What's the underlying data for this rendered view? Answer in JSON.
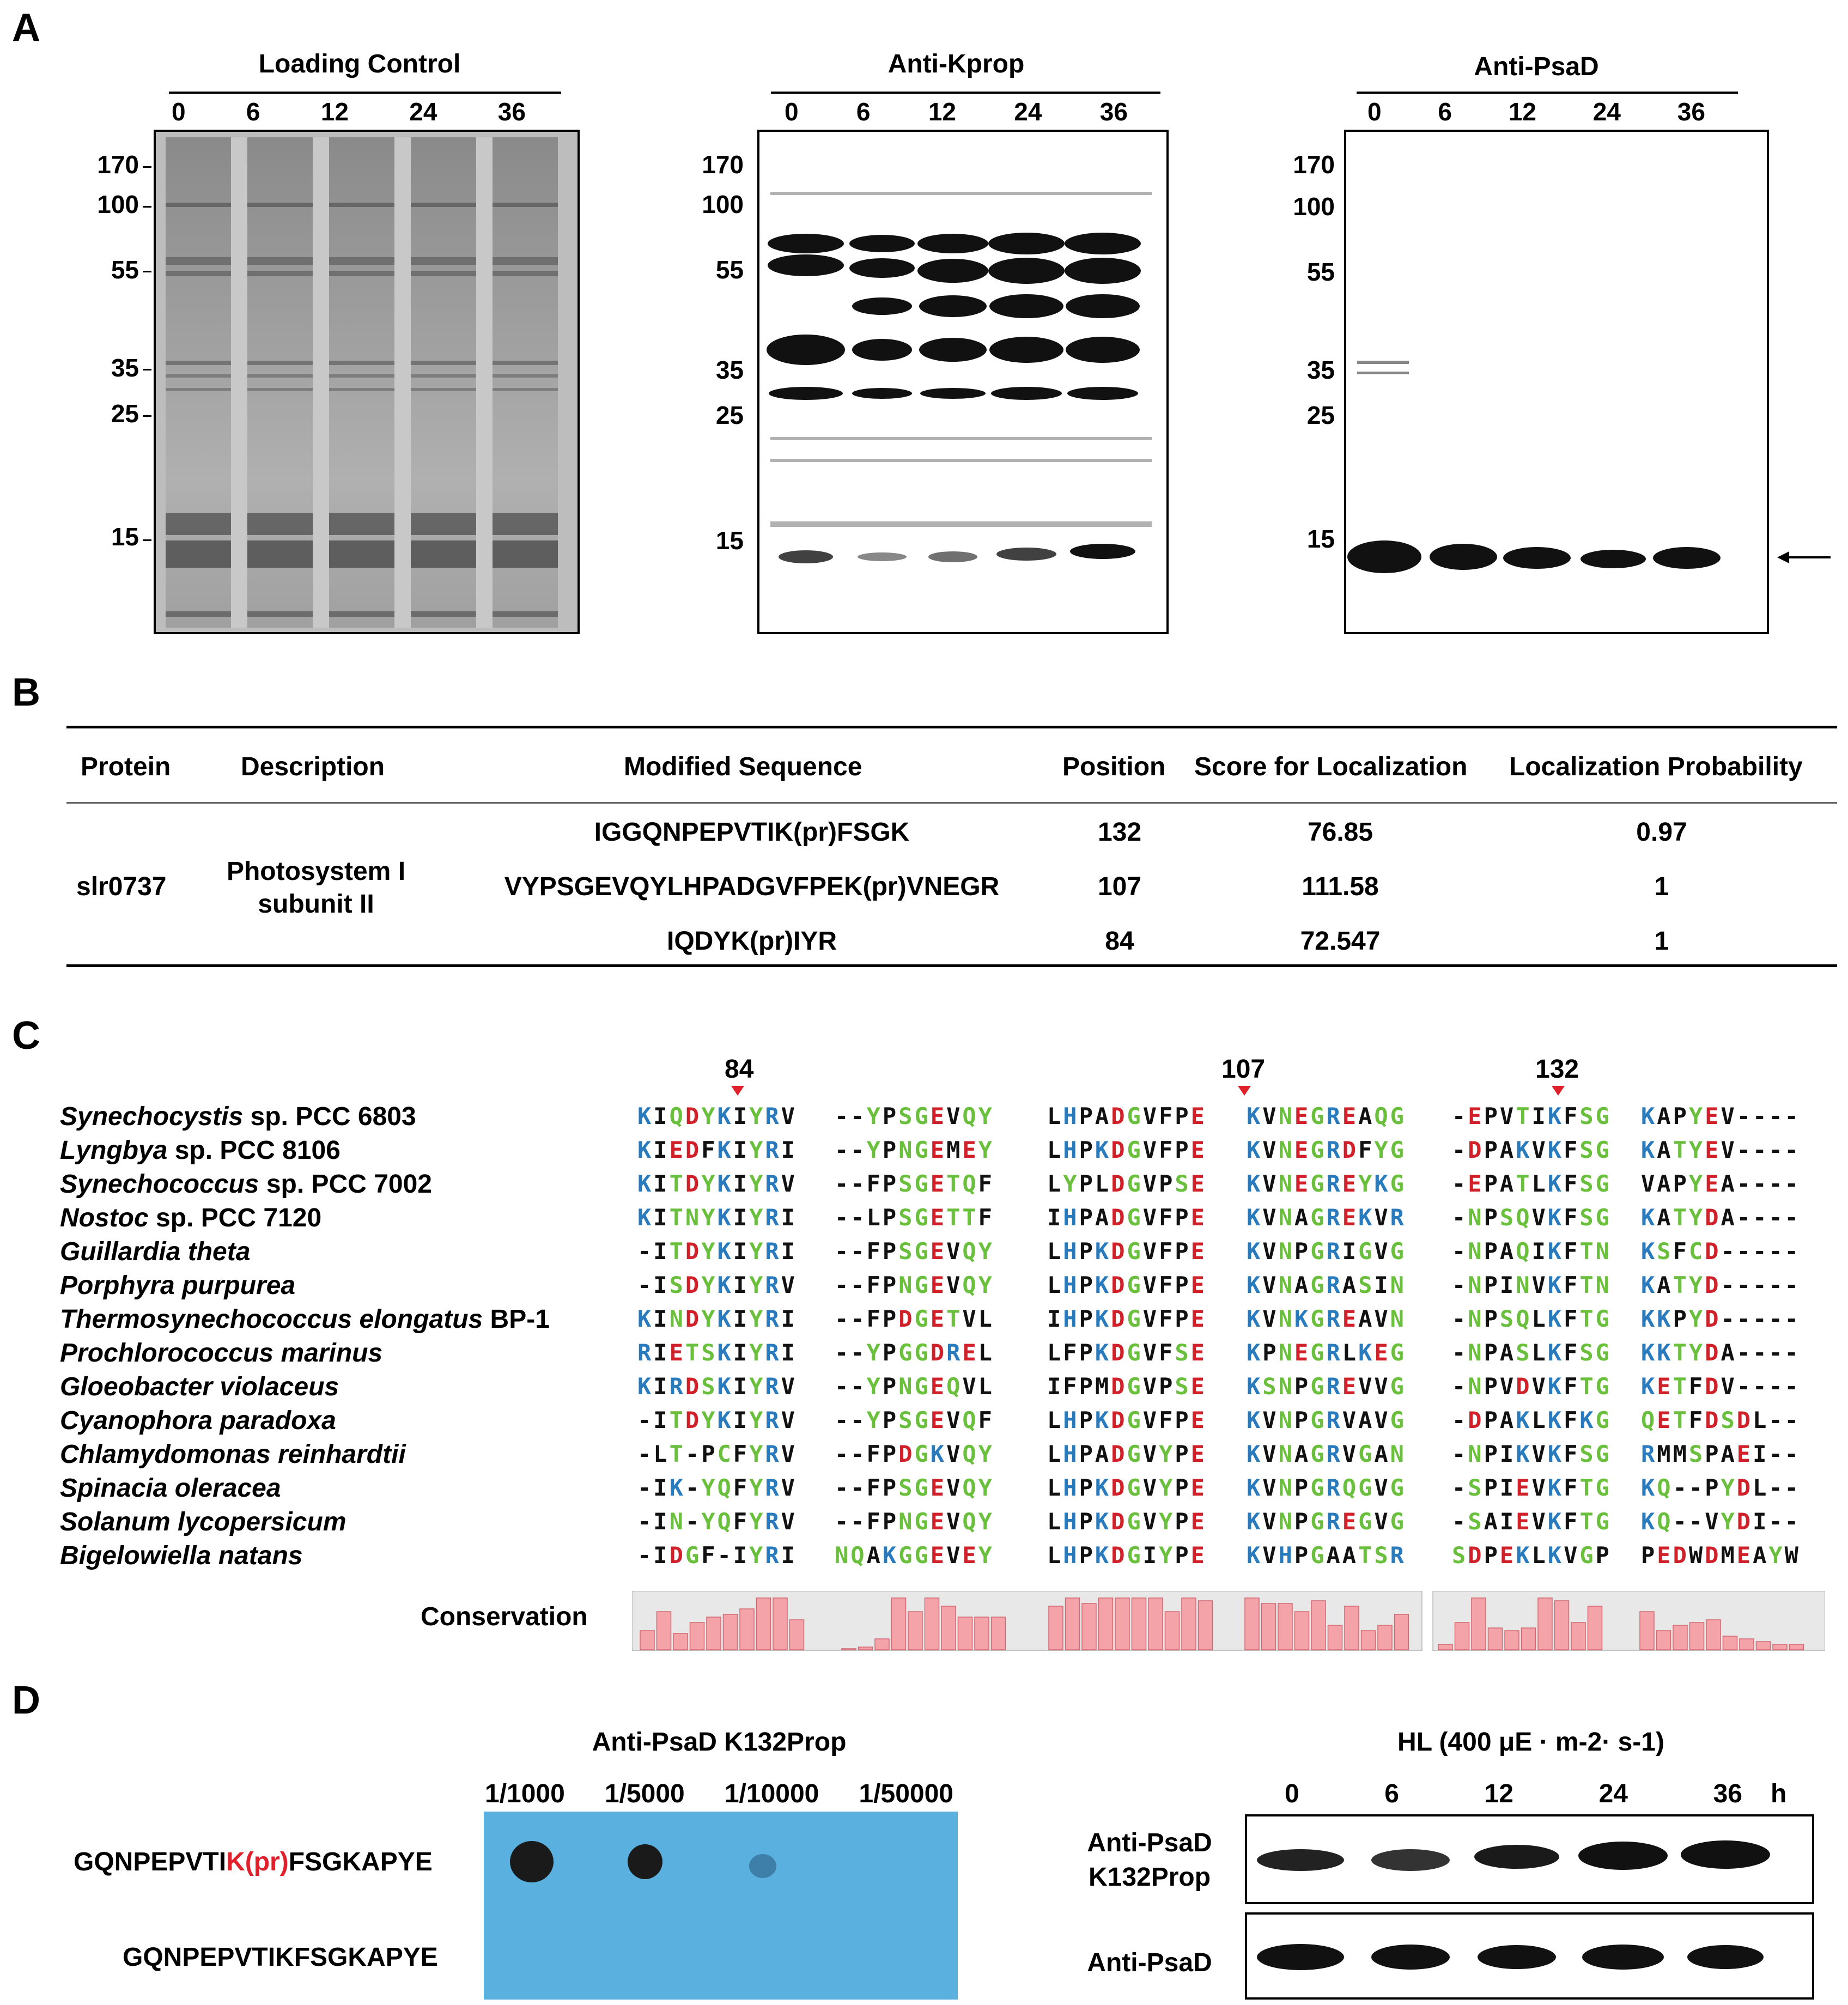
{
  "panels": {
    "a": "A",
    "b": "B",
    "c": "C",
    "d": "D"
  },
  "panel_a": {
    "blots": [
      {
        "title": "Loading Control",
        "lanes": [
          "0",
          "6",
          "12",
          "24",
          "36"
        ],
        "markers": [
          "170",
          "100",
          "55",
          "35",
          "25",
          "15"
        ]
      },
      {
        "title": "Anti-Kprop",
        "lanes": [
          "0",
          "6",
          "12",
          "24",
          "36"
        ],
        "markers": [
          "170",
          "100",
          "55",
          "35",
          "25",
          "15"
        ]
      },
      {
        "title": "Anti-PsaD",
        "lanes": [
          "0",
          "6",
          "12",
          "24",
          "36"
        ],
        "markers": [
          "170",
          "100",
          "55",
          "35",
          "25",
          "15"
        ]
      }
    ]
  },
  "panel_b": {
    "headers": [
      "Protein",
      "Description",
      "Modified Sequence",
      "Position",
      "Score for Localization",
      "Localization Probability"
    ],
    "protein": "slr0737",
    "description_line1": "Photosystem I",
    "description_line2": "subunit II",
    "rows": [
      {
        "sequence": "IGGQNPEPVTIK(pr)FSGK",
        "position": "132",
        "score": "76.85",
        "probability": "0.97"
      },
      {
        "sequence": "VYPSGEVQYLHPADGVFPEK(pr)VNEGR",
        "position": "107",
        "score": "111.58",
        "probability": "1"
      },
      {
        "sequence": "IQDYK(pr)IYR",
        "position": "84",
        "score": "72.547",
        "probability": "1"
      }
    ]
  },
  "panel_c": {
    "site_labels": [
      "84",
      "107",
      "132"
    ],
    "conservation_label": "Conservation",
    "species": [
      {
        "italic": "Synechocystis",
        "rest": " sp. PCC 6803",
        "seq": "KIQDYKIYRV --YPSGEVQY LHPADGVFPE KVNEGREAQG -EPVTIKFSG KAPYEV----"
      },
      {
        "italic": "Lyngbya",
        "rest": " sp. PCC 8106",
        "seq": "KIEDFKIYRI --YPNGEMEY LHPKDGVFPE KVNEGRDFYG -DPAKVKFSG KATYEV----"
      },
      {
        "italic": "Synechococcus",
        "rest": " sp. PCC 7002",
        "seq": "KITDYKIYRV --FPSGETQF LYPLDGVPSE KVNEGREYKG -EPATLKFSG VAPYEA----"
      },
      {
        "italic": "Nostoc",
        "rest": " sp. PCC 7120",
        "seq": "KITNYKIYRI --LPSGETTF IHPADGVFPE KVNAGREKVR -NPSQVKFSG KATYDA----"
      },
      {
        "italic": "Guillardia theta",
        "rest": "",
        "seq": "-ITDYKIYRI --FPSGEVQY LHPKDGVFPE KVNPGRIGVG -NPAQIKFTN KSFCD-----"
      },
      {
        "italic": "Porphyra purpurea",
        "rest": "",
        "seq": "-ISDYKIYRV --FPNGEVQY LHPKDGVFPE KVNAGRASIN -NPINVKFTN KATYD-----"
      },
      {
        "italic": "Thermosynechococcus  elongatus",
        "rest": " BP-1",
        "seq": "KINDYKIYRI --FPDGETVL IHPKDGVFPE KVNKGREAVN -NPSQLKFTG KKPYD-----"
      },
      {
        "italic": "Prochlorococcus  marinus",
        "rest": "",
        "seq": "RIETSKIYRI --YPGGDREL LFPKDGVFSE KPNEGRLKEG -NPASLKFSG KKTYDA----"
      },
      {
        "italic": "Gloeobacter violaceus",
        "rest": "",
        "seq": "KIRDSKIYRV --YPNGEQVL IFPMDGVPSE KSNPGREVVG -NPVDVKFTG KETFDV----"
      },
      {
        "italic": "Cyanophora paradoxa",
        "rest": "",
        "seq": "-ITDYKIYRV --YPSGEVQF LHPKDGVFPE KVNPGRVAVG -DPAKLKFKG QETFDSDL--"
      },
      {
        "italic": "Chlamydomonas  reinhardtii",
        "rest": "",
        "seq": "-LT-PCFYRV --FPDGKVQY LHPADGVYPE KVNAGRVGAN -NPIKVKFSG RMMSPAEI--"
      },
      {
        "italic": "Spinacia oleracea",
        "rest": "",
        "seq": "-IK-YQFYRV --FPSGEVQY LHPKDGVYPE KVNPGRQGVG -SPIEVKFTG KQ--PYDL--"
      },
      {
        "italic": "Solanum lycopersicum",
        "rest": "",
        "seq": "-IN-YQFYRV --FPNGEVQY LHPKDGVYPE KVNPGREGVG -SAIEVKFTG KQ--VYDI--"
      },
      {
        "italic": "Bigelowiella natans",
        "rest": "",
        "seq": "-IDGF-IYRI NQAKGGEVEY LHPKDGIYPE KVHPGAATSR SDPEKLKVGP PEDWDMEAYW"
      }
    ],
    "conservation": [
      0.35,
      0.7,
      0.3,
      0.5,
      0.6,
      0.65,
      0.75,
      0.95,
      0.95,
      0.55,
      0,
      0.05,
      0.2,
      0.95,
      0.7,
      0.95,
      0.8,
      0.6,
      0.6,
      0.6,
      0.8,
      0.95,
      0.85,
      0.95,
      0.95,
      0.95,
      0.95,
      0.7,
      0.95,
      0.9,
      0.95,
      0.85,
      0.85,
      0.7,
      0.9,
      0.45,
      0.8,
      0.35,
      0.45,
      0.65,
      0.1,
      0.5,
      0.95,
      0.4,
      0.35,
      0.4,
      0.95,
      0.9,
      0.5,
      0.8,
      0.7,
      0.35,
      0.45,
      0.5,
      0.55,
      0.25,
      0.2,
      0.15,
      0.1,
      0.1
    ],
    "colors": {
      "blue": "#2a7bbd",
      "green": "#6abf3c",
      "red": "#d0202a",
      "bar": "#f4a3a8",
      "bar_bg": "#e8e8e8"
    }
  },
  "panel_d": {
    "dot_title": "Anti-PsaD  K132Prop",
    "dilutions": [
      "1/1000",
      "1/5000",
      "1/10000",
      "1/50000"
    ],
    "peptide1_pre": "GQNPEPVTI",
    "peptide1_mod": "K(pr)",
    "peptide1_post": "FSGKAPYE",
    "peptide2": "GQNPEPVTIKFSGKAPYE",
    "wb_title": "HL (400 μE · m-2· s-1)",
    "wb_lanes": [
      "0",
      "6",
      "12",
      "24",
      "36"
    ],
    "wb_unit": "h",
    "row1_label_line1": "Anti-PsaD",
    "row1_label_line2": "K132Prop",
    "row2_label": "Anti-PsaD",
    "membrane_color": "#5ab0de"
  }
}
